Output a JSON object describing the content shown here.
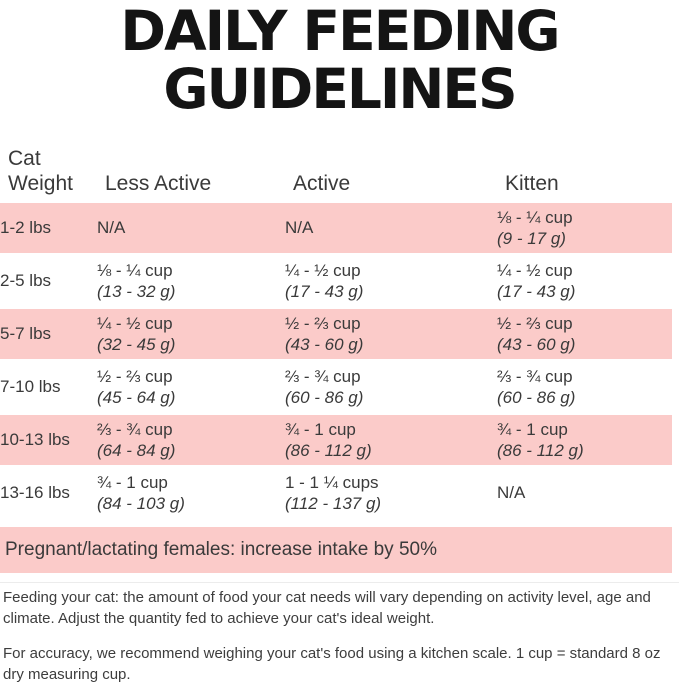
{
  "title": {
    "line1": "DAILY FEEDING",
    "line2": "GUIDELINES"
  },
  "table": {
    "headers": {
      "weight_line1": "Cat",
      "weight_line2": "Weight",
      "less_active": "Less Active",
      "active": "Active",
      "kitten": "Kitten"
    },
    "rows": [
      {
        "weight": "1-2 lbs",
        "less_active": {
          "cups": "N/A",
          "grams": ""
        },
        "active": {
          "cups": "N/A",
          "grams": ""
        },
        "kitten": {
          "cups": "⅛ - ¼ cup",
          "grams": "(9 - 17 g)"
        }
      },
      {
        "weight": "2-5 lbs",
        "less_active": {
          "cups": "⅛ - ¼ cup",
          "grams": "(13 - 32 g)"
        },
        "active": {
          "cups": "¼ - ½ cup",
          "grams": "(17 - 43 g)"
        },
        "kitten": {
          "cups": "¼ - ½ cup",
          "grams": "(17 - 43 g)"
        }
      },
      {
        "weight": "5-7 lbs",
        "less_active": {
          "cups": "¼ - ½ cup",
          "grams": "(32 - 45 g)"
        },
        "active": {
          "cups": "½ - ⅔ cup",
          "grams": "(43 - 60 g)"
        },
        "kitten": {
          "cups": "½ - ⅔ cup",
          "grams": "(43 - 60 g)"
        }
      },
      {
        "weight": "7-10 lbs",
        "less_active": {
          "cups": "½ - ⅔ cup",
          "grams": "(45 - 64 g)"
        },
        "active": {
          "cups": "⅔ - ¾ cup",
          "grams": "(60 - 86 g)"
        },
        "kitten": {
          "cups": "⅔ - ¾ cup",
          "grams": "(60 - 86 g)"
        }
      },
      {
        "weight": "10-13 lbs",
        "less_active": {
          "cups": "⅔ - ¾ cup",
          "grams": "(64 - 84 g)"
        },
        "active": {
          "cups": "¾ - 1 cup",
          "grams": "(86 - 112 g)"
        },
        "kitten": {
          "cups": "¾ - 1 cup",
          "grams": "(86 - 112 g)"
        }
      },
      {
        "weight": "13-16 lbs",
        "less_active": {
          "cups": "¾ - 1 cup",
          "grams": "(84 - 103 g)"
        },
        "active": {
          "cups": "1 - 1 ¼ cups",
          "grams": "(112 - 137 g)"
        },
        "kitten": {
          "cups": "N/A",
          "grams": ""
        }
      }
    ]
  },
  "banner": "Pregnant/lactating females: increase intake by 50%",
  "notes": {
    "feeding": "Feeding your cat: the amount of food your cat needs will vary depending on activity level, age and climate. Adjust the quantity fed to achieve your cat's ideal weight.",
    "accuracy": "For accuracy, we recommend weighing your cat's food using a kitchen scale. 1 cup = standard 8 oz dry measuring cup."
  },
  "colors": {
    "row_pink": "#fbcbc9",
    "title_black": "#141414",
    "body_text": "#3d3d3d"
  }
}
